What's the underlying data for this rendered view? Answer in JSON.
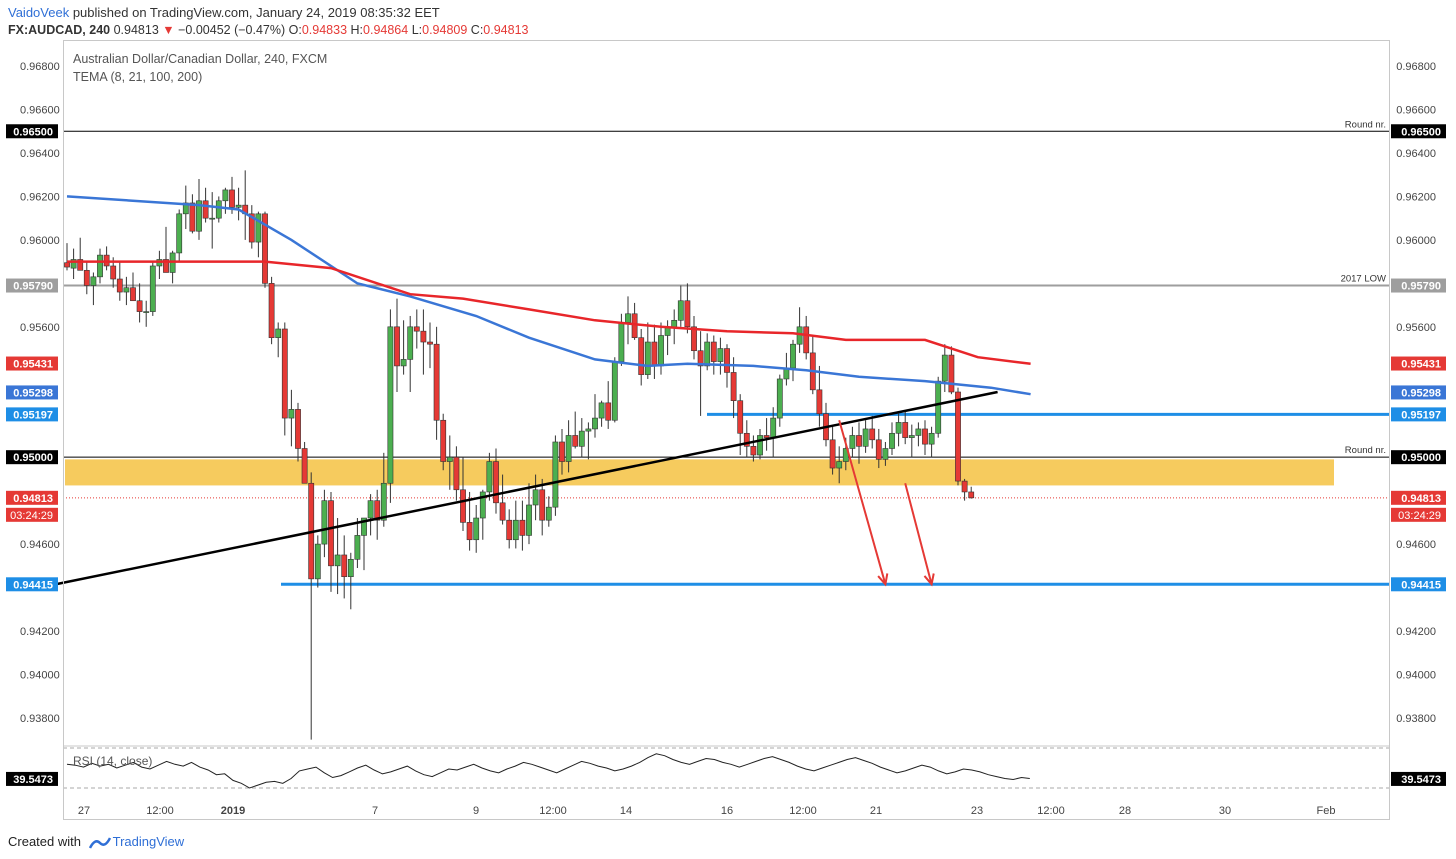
{
  "header": {
    "author": "VaidoVeek",
    "published_text": "published on TradingView.com, January 24, 2019 08:35:32 EET",
    "symbol": "FX:AUDCAD, 240",
    "price": "0.94813",
    "change": "−0.00452 (−0.47%)",
    "ohlc": {
      "o_label": "O:",
      "o": "0.94833",
      "h_label": "H:",
      "h": "0.94864",
      "l_label": "L:",
      "l": "0.94809",
      "c_label": "C:",
      "c": "0.94813"
    }
  },
  "legend": {
    "title": "Australian Dollar/Canadian Dollar, 240, FXCM",
    "indicator": "TEMA (8, 21, 100, 200)",
    "rsi": "RSI (14, close)"
  },
  "footer": {
    "created_with": "Created with",
    "brand": "TradingView"
  },
  "colors": {
    "up": "#4caf50",
    "down": "#e53935",
    "tema_red": "#e8262a",
    "tema_blue": "#3a76d6",
    "zone": "#f5c242",
    "blue_level": "#1e8ee6",
    "grey_level": "#9e9e9e"
  },
  "chart_data": {
    "type": "candlestick",
    "symbol": "FX:AUDCAD",
    "timeframe": "240",
    "ylim": [
      0.9368,
      0.9692
    ],
    "y_ticks": [
      "0.96800",
      "0.96600",
      "0.96400",
      "0.96200",
      "0.96000",
      "0.95600",
      "0.94600",
      "0.94200",
      "0.94000",
      "0.93800"
    ],
    "x_ticks": [
      "27",
      "12:00",
      "2019",
      "7",
      "9",
      "12:00",
      "14",
      "16",
      "12:00",
      "21",
      "23",
      "12:00",
      "28",
      "30",
      "Feb"
    ],
    "x_tick_bold": [
      "2019"
    ],
    "levels": [
      {
        "value": 0.965,
        "label": "0.96500",
        "annotation": "Round nr.",
        "color": "#000000",
        "tag_bg": "#000000"
      },
      {
        "value": 0.9579,
        "label": "0.95790",
        "annotation": "2017 LOW",
        "color": "#9e9e9e",
        "tag_bg": "#9e9e9e"
      },
      {
        "value": 0.95,
        "label": "0.95000",
        "annotation": "Round nr.",
        "color": "#000000",
        "tag_bg": "#000000"
      },
      {
        "value": 0.95197,
        "label": "0.95197",
        "annotation": "",
        "color": "#1e8ee6",
        "tag_bg": "#1e8ee6"
      },
      {
        "value": 0.94415,
        "label": "0.94415",
        "annotation": "",
        "color": "#1e8ee6",
        "tag_bg": "#1e8ee6"
      }
    ],
    "price_tags": [
      {
        "value": 0.95431,
        "label": "0.95431",
        "bg": "#e53935"
      },
      {
        "value": 0.95298,
        "label": "0.95298",
        "bg": "#3a76d6"
      },
      {
        "value": 0.94813,
        "label": "0.94813",
        "bg": "#e53935"
      }
    ],
    "countdown": "03:24:29",
    "support_zone": [
      0.9487,
      0.9499
    ],
    "rsi": {
      "value": "39.5473",
      "length": 14,
      "source": "close"
    },
    "ohlc": [
      [
        0.95895,
        0.95985,
        0.9586,
        0.95875
      ],
      [
        0.9587,
        0.9596,
        0.9582,
        0.9591
      ],
      [
        0.9591,
        0.9601,
        0.9588,
        0.9586
      ],
      [
        0.9586,
        0.959,
        0.9575,
        0.9579
      ],
      [
        0.9579,
        0.9585,
        0.957,
        0.9583
      ],
      [
        0.9583,
        0.9596,
        0.958,
        0.9593
      ],
      [
        0.9593,
        0.9597,
        0.9586,
        0.9588
      ],
      [
        0.9588,
        0.9592,
        0.9578,
        0.9582
      ],
      [
        0.9582,
        0.959,
        0.9572,
        0.9576
      ],
      [
        0.9576,
        0.9583,
        0.957,
        0.9578
      ],
      [
        0.9578,
        0.9585,
        0.9574,
        0.9572
      ],
      [
        0.9572,
        0.958,
        0.9562,
        0.9567
      ],
      [
        0.9567,
        0.9572,
        0.956,
        0.9567
      ],
      [
        0.9567,
        0.959,
        0.9565,
        0.9588
      ],
      [
        0.9588,
        0.9595,
        0.9582,
        0.9591
      ],
      [
        0.9591,
        0.9606,
        0.9588,
        0.9585
      ],
      [
        0.9585,
        0.9595,
        0.958,
        0.9594
      ],
      [
        0.9594,
        0.9614,
        0.959,
        0.9612
      ],
      [
        0.9612,
        0.9625,
        0.9605,
        0.9617
      ],
      [
        0.9617,
        0.9621,
        0.9603,
        0.9604
      ],
      [
        0.9604,
        0.9628,
        0.96,
        0.9618
      ],
      [
        0.9618,
        0.9624,
        0.9608,
        0.961
      ],
      [
        0.961,
        0.9622,
        0.9596,
        0.961
      ],
      [
        0.961,
        0.962,
        0.9608,
        0.9618
      ],
      [
        0.9618,
        0.9624,
        0.9612,
        0.9623
      ],
      [
        0.9623,
        0.9629,
        0.9612,
        0.9615
      ],
      [
        0.9615,
        0.9624,
        0.9609,
        0.9616
      ],
      [
        0.9616,
        0.9632,
        0.96,
        0.9612
      ],
      [
        0.9612,
        0.9616,
        0.9596,
        0.9599
      ],
      [
        0.9599,
        0.9613,
        0.9592,
        0.9612
      ],
      [
        0.9612,
        0.9613,
        0.9578,
        0.958
      ],
      [
        0.958,
        0.9583,
        0.9552,
        0.9555
      ],
      [
        0.9555,
        0.9562,
        0.9546,
        0.9559
      ],
      [
        0.9559,
        0.9562,
        0.951,
        0.9518
      ],
      [
        0.9518,
        0.9531,
        0.9505,
        0.9522
      ],
      [
        0.9522,
        0.9525,
        0.9498,
        0.9504
      ],
      [
        0.9504,
        0.9507,
        0.9488,
        0.9488
      ],
      [
        0.9488,
        0.9493,
        0.937,
        0.9444
      ],
      [
        0.9444,
        0.9464,
        0.944,
        0.946
      ],
      [
        0.946,
        0.9485,
        0.9454,
        0.948
      ],
      [
        0.948,
        0.9484,
        0.9438,
        0.945
      ],
      [
        0.945,
        0.9472,
        0.9437,
        0.9455
      ],
      [
        0.9455,
        0.9464,
        0.9435,
        0.9445
      ],
      [
        0.9445,
        0.9456,
        0.943,
        0.9453
      ],
      [
        0.9453,
        0.9472,
        0.9449,
        0.9464
      ],
      [
        0.9464,
        0.9471,
        0.9448,
        0.9472
      ],
      [
        0.9472,
        0.9483,
        0.9464,
        0.948
      ],
      [
        0.948,
        0.9485,
        0.9462,
        0.9471
      ],
      [
        0.9471,
        0.9502,
        0.9468,
        0.9488
      ],
      [
        0.9488,
        0.9568,
        0.9479,
        0.956
      ],
      [
        0.956,
        0.9573,
        0.953,
        0.9542
      ],
      [
        0.9542,
        0.9563,
        0.9538,
        0.9545
      ],
      [
        0.9545,
        0.9565,
        0.953,
        0.956
      ],
      [
        0.956,
        0.9568,
        0.955,
        0.9558
      ],
      [
        0.9558,
        0.9568,
        0.9538,
        0.9553
      ],
      [
        0.9553,
        0.9562,
        0.9541,
        0.9552
      ],
      [
        0.9552,
        0.956,
        0.9508,
        0.9517
      ],
      [
        0.9517,
        0.952,
        0.9494,
        0.9498
      ],
      [
        0.9498,
        0.951,
        0.9485,
        0.95
      ],
      [
        0.95,
        0.9505,
        0.948,
        0.9485
      ],
      [
        0.9485,
        0.95,
        0.9466,
        0.947
      ],
      [
        0.947,
        0.9484,
        0.9457,
        0.9462
      ],
      [
        0.9462,
        0.9478,
        0.9456,
        0.9472
      ],
      [
        0.9472,
        0.9485,
        0.9462,
        0.9484
      ],
      [
        0.9484,
        0.9502,
        0.948,
        0.9498
      ],
      [
        0.9498,
        0.9504,
        0.9474,
        0.9479
      ],
      [
        0.9479,
        0.9492,
        0.9469,
        0.9471
      ],
      [
        0.9471,
        0.9476,
        0.9458,
        0.9462
      ],
      [
        0.9462,
        0.948,
        0.9458,
        0.9471
      ],
      [
        0.9471,
        0.948,
        0.9457,
        0.9464
      ],
      [
        0.9464,
        0.9488,
        0.946,
        0.9478
      ],
      [
        0.9478,
        0.9492,
        0.9471,
        0.9485
      ],
      [
        0.9485,
        0.949,
        0.9464,
        0.9471
      ],
      [
        0.9471,
        0.9482,
        0.9468,
        0.9477
      ],
      [
        0.9477,
        0.951,
        0.9473,
        0.9507
      ],
      [
        0.9507,
        0.9513,
        0.9492,
        0.9498
      ],
      [
        0.9498,
        0.9517,
        0.9493,
        0.951
      ],
      [
        0.951,
        0.9521,
        0.9504,
        0.9505
      ],
      [
        0.9505,
        0.9518,
        0.95,
        0.9512
      ],
      [
        0.9512,
        0.9516,
        0.9499,
        0.9513
      ],
      [
        0.9513,
        0.9529,
        0.9509,
        0.9518
      ],
      [
        0.9518,
        0.9526,
        0.9514,
        0.9525
      ],
      [
        0.9525,
        0.9535,
        0.9513,
        0.9517
      ],
      [
        0.9517,
        0.9546,
        0.9516,
        0.9544
      ],
      [
        0.9544,
        0.9566,
        0.9542,
        0.9562
      ],
      [
        0.9562,
        0.9574,
        0.9552,
        0.9566
      ],
      [
        0.9566,
        0.9571,
        0.9554,
        0.9555
      ],
      [
        0.9555,
        0.9559,
        0.9533,
        0.9538
      ],
      [
        0.9538,
        0.9562,
        0.9536,
        0.9553
      ],
      [
        0.9553,
        0.9561,
        0.9536,
        0.9542
      ],
      [
        0.9542,
        0.9562,
        0.9538,
        0.9556
      ],
      [
        0.9556,
        0.9563,
        0.9547,
        0.956
      ],
      [
        0.956,
        0.9568,
        0.9552,
        0.9563
      ],
      [
        0.9563,
        0.9579,
        0.956,
        0.9572
      ],
      [
        0.9572,
        0.958,
        0.9557,
        0.956
      ],
      [
        0.956,
        0.9565,
        0.9545,
        0.9549
      ],
      [
        0.9549,
        0.9558,
        0.9519,
        0.9542
      ],
      [
        0.9542,
        0.9557,
        0.954,
        0.9553
      ],
      [
        0.9553,
        0.9556,
        0.9538,
        0.9544
      ],
      [
        0.9544,
        0.9555,
        0.9538,
        0.955
      ],
      [
        0.955,
        0.9552,
        0.9532,
        0.9539
      ],
      [
        0.9539,
        0.9546,
        0.9518,
        0.9526
      ],
      [
        0.9526,
        0.9529,
        0.9501,
        0.9511
      ],
      [
        0.9511,
        0.9517,
        0.95,
        0.9505
      ],
      [
        0.9505,
        0.951,
        0.9498,
        0.9501
      ],
      [
        0.9501,
        0.9513,
        0.9499,
        0.951
      ],
      [
        0.951,
        0.9518,
        0.9503,
        0.9509
      ],
      [
        0.9509,
        0.9523,
        0.95,
        0.9518
      ],
      [
        0.9518,
        0.9538,
        0.9514,
        0.9536
      ],
      [
        0.9536,
        0.9548,
        0.9533,
        0.9541
      ],
      [
        0.9541,
        0.9554,
        0.9535,
        0.9552
      ],
      [
        0.9552,
        0.9569,
        0.9548,
        0.956
      ],
      [
        0.956,
        0.9565,
        0.9545,
        0.9548
      ],
      [
        0.9548,
        0.9556,
        0.9529,
        0.9531
      ],
      [
        0.9531,
        0.9542,
        0.9514,
        0.952
      ],
      [
        0.952,
        0.9525,
        0.9505,
        0.9508
      ],
      [
        0.9508,
        0.9514,
        0.9492,
        0.9495
      ],
      [
        0.9495,
        0.9505,
        0.9488,
        0.9498
      ],
      [
        0.9498,
        0.9509,
        0.9494,
        0.9504
      ],
      [
        0.9504,
        0.9514,
        0.95,
        0.951
      ],
      [
        0.951,
        0.9516,
        0.9497,
        0.9505
      ],
      [
        0.9505,
        0.9517,
        0.9502,
        0.9513
      ],
      [
        0.9513,
        0.9519,
        0.9504,
        0.9508
      ],
      [
        0.9508,
        0.9513,
        0.9495,
        0.9499
      ],
      [
        0.9499,
        0.9507,
        0.9496,
        0.9504
      ],
      [
        0.9504,
        0.9516,
        0.9501,
        0.9511
      ],
      [
        0.9511,
        0.952,
        0.9505,
        0.9516
      ],
      [
        0.9516,
        0.9521,
        0.9506,
        0.9509
      ],
      [
        0.9509,
        0.9515,
        0.95,
        0.951
      ],
      [
        0.951,
        0.9516,
        0.9505,
        0.9513
      ],
      [
        0.9513,
        0.9517,
        0.9501,
        0.9506
      ],
      [
        0.9506,
        0.9514,
        0.95,
        0.9511
      ],
      [
        0.9511,
        0.9537,
        0.9509,
        0.9535
      ],
      [
        0.9535,
        0.9552,
        0.953,
        0.9547
      ],
      [
        0.9547,
        0.9551,
        0.9529,
        0.953
      ],
      [
        0.953,
        0.9532,
        0.9487,
        0.9489
      ],
      [
        0.9489,
        0.949,
        0.948,
        0.9484
      ],
      [
        0.9484,
        0.94864,
        0.94809,
        0.94813
      ]
    ],
    "tema_red": [
      [
        0,
        0.959
      ],
      [
        30,
        0.959
      ],
      [
        40,
        0.9587
      ],
      [
        52,
        0.9575
      ],
      [
        60,
        0.9573
      ],
      [
        70,
        0.9568
      ],
      [
        80,
        0.9563
      ],
      [
        90,
        0.956
      ],
      [
        100,
        0.9558
      ],
      [
        110,
        0.9557
      ],
      [
        118,
        0.9554
      ],
      [
        130,
        0.9554
      ],
      [
        138,
        0.9546
      ],
      [
        146,
        0.9543
      ]
    ],
    "tema_blue": [
      [
        0,
        0.962
      ],
      [
        20,
        0.9616
      ],
      [
        26,
        0.9614
      ],
      [
        34,
        0.96
      ],
      [
        44,
        0.958
      ],
      [
        52,
        0.9574
      ],
      [
        62,
        0.9565
      ],
      [
        70,
        0.9555
      ],
      [
        80,
        0.9545
      ],
      [
        88,
        0.9542
      ],
      [
        94,
        0.9543
      ],
      [
        104,
        0.9542
      ],
      [
        112,
        0.954
      ],
      [
        120,
        0.9537
      ],
      [
        130,
        0.9535
      ],
      [
        140,
        0.9532
      ],
      [
        146,
        0.9529
      ]
    ],
    "trendline": [
      [
        0.5,
        0.9441
      ],
      [
        141,
        0.953
      ]
    ],
    "arrows": [
      [
        [
          117,
          0.9517
        ],
        [
          124,
          0.94415
        ]
      ],
      [
        [
          127,
          0.9488
        ],
        [
          131,
          0.94415
        ]
      ]
    ],
    "rsi_series": [
      55,
      54,
      52,
      56,
      53,
      55,
      51,
      54,
      57,
      52,
      50,
      54,
      58,
      55,
      53,
      57,
      52,
      49,
      44,
      45,
      38,
      35,
      30,
      33,
      36,
      37,
      35,
      40,
      48,
      50,
      52,
      46,
      41,
      43,
      47,
      51,
      54,
      49,
      45,
      47,
      50,
      53,
      48,
      44,
      42,
      46,
      50,
      49,
      52,
      55,
      51,
      48,
      46,
      50,
      53,
      57,
      55,
      52,
      49,
      46,
      50,
      54,
      58,
      56,
      53,
      51,
      48,
      50,
      53,
      57,
      62,
      66,
      64,
      60,
      57,
      55,
      58,
      61,
      60,
      57,
      55,
      52,
      55,
      58,
      61,
      63,
      60,
      57,
      53,
      50,
      48,
      51,
      54,
      57,
      60,
      62,
      59,
      56,
      52,
      49,
      46,
      48,
      51,
      54,
      52,
      48,
      45,
      47,
      50,
      49,
      47,
      44,
      42,
      40,
      39,
      41,
      40
    ]
  }
}
